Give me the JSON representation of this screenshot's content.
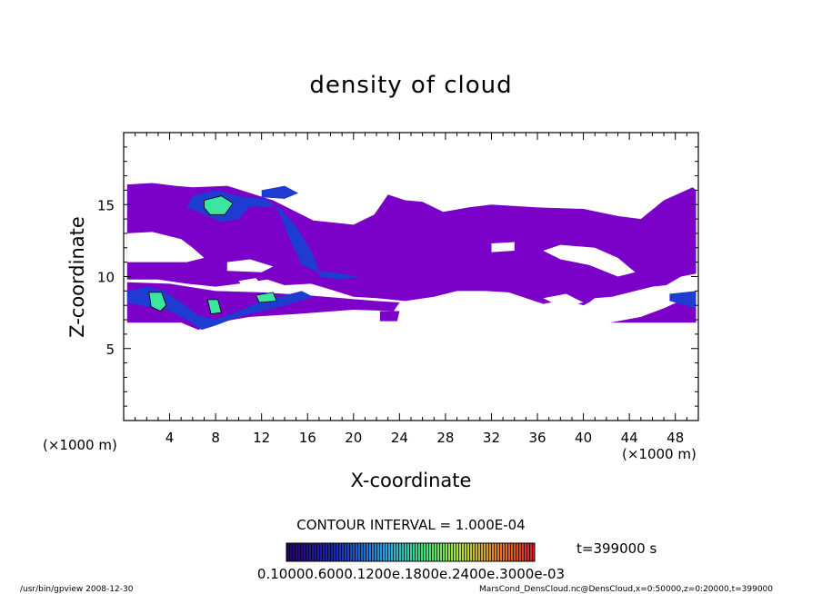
{
  "chart_data": {
    "type": "heatmap",
    "title": "density of cloud",
    "xlabel": "X-coordinate",
    "ylabel": "Z-coordinate",
    "x_unit": "(×1000 m)",
    "y_unit": "(×1000 m)",
    "xlim": [
      0,
      50
    ],
    "ylim": [
      0,
      20
    ],
    "x_ticks": [
      4,
      8,
      12,
      16,
      20,
      24,
      28,
      32,
      36,
      40,
      44,
      48
    ],
    "y_ticks": [
      5,
      10,
      15
    ],
    "contour_interval": "CONTOUR INTERVAL = 1.000E-04",
    "time_label": "t=399000 s",
    "colorbar_labels": "0.10000.6000.1200e.1800e.2400e.3000e-03",
    "colors": {
      "background": "#7b00c8",
      "mid": "#1e3cd2",
      "high": "#3ce6a0"
    },
    "regions": [
      {
        "level": 1,
        "points": [
          [
            0.3,
            16.4
          ],
          [
            2.5,
            16.5
          ],
          [
            4.5,
            16.3
          ],
          [
            6,
            16.2
          ],
          [
            9,
            16.3
          ],
          [
            13,
            15.3
          ],
          [
            16.5,
            13.9
          ],
          [
            20,
            13.6
          ],
          [
            21.8,
            14.3
          ],
          [
            23,
            15.7
          ],
          [
            24.5,
            15.3
          ],
          [
            26,
            15.2
          ],
          [
            27.8,
            14.5
          ],
          [
            30,
            14.8
          ],
          [
            32,
            15.0
          ],
          [
            36,
            14.8
          ],
          [
            40,
            14.7
          ],
          [
            43,
            14.2
          ],
          [
            45,
            14.0
          ],
          [
            47,
            15.3
          ],
          [
            49.5,
            16.2
          ],
          [
            49.8,
            16.0
          ],
          [
            49.8,
            10.2
          ],
          [
            48.5,
            10.0
          ],
          [
            47.2,
            9.4
          ],
          [
            46,
            9.3
          ],
          [
            44.5,
            9.0
          ],
          [
            42.5,
            8.6
          ],
          [
            41,
            8.5
          ],
          [
            40.5,
            8.2
          ],
          [
            40,
            8.0
          ],
          [
            38.5,
            8.4
          ],
          [
            36.5,
            8.1
          ],
          [
            35,
            8.5
          ],
          [
            33.5,
            8.9
          ],
          [
            31.5,
            9.0
          ],
          [
            29,
            9.0
          ],
          [
            27,
            8.6
          ],
          [
            24.5,
            8.3
          ],
          [
            22,
            8.5
          ],
          [
            20,
            8.6
          ],
          [
            18,
            9.1
          ],
          [
            16.3,
            9.5
          ],
          [
            14,
            9.4
          ],
          [
            12.5,
            9.8
          ],
          [
            10,
            9.5
          ],
          [
            8,
            9.3
          ],
          [
            5.5,
            9.5
          ],
          [
            3,
            9.8
          ],
          [
            0.3,
            9.8
          ],
          [
            0.3,
            16.4
          ]
        ]
      },
      {
        "level": 1,
        "points": [
          [
            0.3,
            9.6
          ],
          [
            4,
            9.5
          ],
          [
            8,
            9.0
          ],
          [
            12,
            8.9
          ],
          [
            16,
            8.7
          ],
          [
            19,
            8.5
          ],
          [
            22,
            8.3
          ],
          [
            24,
            8.2
          ],
          [
            23.5,
            7.6
          ],
          [
            20,
            7.7
          ],
          [
            15,
            7.4
          ],
          [
            11,
            7.2
          ],
          [
            8,
            6.8
          ],
          [
            6.5,
            6.3
          ],
          [
            5,
            6.8
          ],
          [
            0.3,
            6.8
          ],
          [
            0.3,
            9.6
          ]
        ]
      },
      {
        "level": 1,
        "points": [
          [
            42.3,
            6.8
          ],
          [
            45,
            7.2
          ],
          [
            47,
            7.8
          ],
          [
            49.8,
            8.8
          ],
          [
            49.8,
            6.8
          ],
          [
            42.3,
            6.8
          ]
        ]
      },
      {
        "level": 1,
        "points": [
          [
            22.3,
            7.6
          ],
          [
            24,
            7.6
          ],
          [
            23.8,
            6.9
          ],
          [
            22.3,
            6.9
          ],
          [
            22.3,
            7.6
          ]
        ]
      },
      {
        "level": 0,
        "points": [
          [
            0.3,
            13.0
          ],
          [
            2.5,
            13.1
          ],
          [
            5,
            12.6
          ],
          [
            6,
            12.0
          ],
          [
            7,
            11.3
          ],
          [
            5.5,
            11.0
          ],
          [
            0.3,
            11.0
          ],
          [
            0.3,
            13.0
          ]
        ]
      },
      {
        "level": 0,
        "points": [
          [
            9,
            11.0
          ],
          [
            11,
            11.2
          ],
          [
            13,
            10.7
          ],
          [
            12,
            10.3
          ],
          [
            9,
            10.4
          ],
          [
            9,
            11.0
          ]
        ]
      },
      {
        "level": 0,
        "points": [
          [
            10,
            9.7
          ],
          [
            11.5,
            9.9
          ],
          [
            12,
            9.4
          ],
          [
            10.5,
            9.2
          ],
          [
            10,
            9.7
          ]
        ]
      },
      {
        "level": 0,
        "points": [
          [
            38,
            12.2
          ],
          [
            41,
            12.0
          ],
          [
            43,
            11.3
          ],
          [
            44.5,
            10.3
          ],
          [
            43,
            10.0
          ],
          [
            40.5,
            10.8
          ],
          [
            38,
            11.2
          ],
          [
            36.5,
            11.8
          ],
          [
            38,
            12.2
          ]
        ]
      },
      {
        "level": 0,
        "points": [
          [
            32,
            12.3
          ],
          [
            34,
            12.4
          ],
          [
            34,
            11.8
          ],
          [
            32,
            11.7
          ],
          [
            32,
            12.3
          ]
        ]
      },
      {
        "level": 0,
        "points": [
          [
            36.5,
            8.5
          ],
          [
            38.5,
            8.8
          ],
          [
            40,
            8.2
          ],
          [
            38,
            7.9
          ],
          [
            36.5,
            8.5
          ]
        ]
      },
      {
        "level": 2,
        "points": [
          [
            6,
            15.6
          ],
          [
            8,
            16.0
          ],
          [
            10.5,
            15.5
          ],
          [
            12.5,
            15.4
          ],
          [
            13.5,
            14.5
          ],
          [
            14.5,
            12.5
          ],
          [
            15.5,
            10.8
          ],
          [
            17,
            10.3
          ],
          [
            16.5,
            11.5
          ],
          [
            15,
            13.5
          ],
          [
            13.5,
            14.8
          ],
          [
            11,
            14.9
          ],
          [
            10,
            14.0
          ],
          [
            8.5,
            13.8
          ],
          [
            6.5,
            14.5
          ],
          [
            5.5,
            14.8
          ],
          [
            6,
            15.6
          ]
        ]
      },
      {
        "level": 2,
        "points": [
          [
            0.3,
            9.0
          ],
          [
            2,
            9.3
          ],
          [
            3.5,
            9.0
          ],
          [
            5,
            8.2
          ],
          [
            6.5,
            7.3
          ],
          [
            8,
            7.0
          ],
          [
            10,
            7.6
          ],
          [
            12,
            8.3
          ],
          [
            14,
            8.7
          ],
          [
            15.5,
            9.0
          ],
          [
            16.5,
            8.6
          ],
          [
            14,
            8.0
          ],
          [
            12,
            7.6
          ],
          [
            10,
            7.2
          ],
          [
            8,
            6.6
          ],
          [
            6.8,
            6.3
          ],
          [
            5.5,
            7.0
          ],
          [
            3.5,
            7.8
          ],
          [
            1.5,
            8.0
          ],
          [
            0.3,
            8.2
          ],
          [
            0.3,
            9.0
          ]
        ]
      },
      {
        "level": 2,
        "points": [
          [
            12,
            16.0
          ],
          [
            14,
            16.3
          ],
          [
            15.2,
            15.8
          ],
          [
            14,
            15.4
          ],
          [
            12,
            15.5
          ],
          [
            12,
            16.0
          ]
        ]
      },
      {
        "level": 2,
        "points": [
          [
            47.5,
            8.8
          ],
          [
            49.8,
            9.0
          ],
          [
            49.8,
            7.8
          ],
          [
            47.5,
            8.3
          ],
          [
            47.5,
            8.8
          ]
        ]
      },
      {
        "level": 2,
        "points": [
          [
            17,
            10.4
          ],
          [
            19,
            10.2
          ],
          [
            20.5,
            10.0
          ],
          [
            19,
            9.8
          ],
          [
            17,
            10.0
          ],
          [
            17,
            10.4
          ]
        ]
      },
      {
        "level": 3,
        "points": [
          [
            7,
            15.3
          ],
          [
            8.5,
            15.6
          ],
          [
            9.5,
            15.1
          ],
          [
            8.8,
            14.3
          ],
          [
            7.5,
            14.3
          ],
          [
            7,
            14.8
          ],
          [
            7,
            15.3
          ]
        ]
      },
      {
        "level": 3,
        "points": [
          [
            2.2,
            8.9
          ],
          [
            3.3,
            8.9
          ],
          [
            3.7,
            8.0
          ],
          [
            3.2,
            7.6
          ],
          [
            2.4,
            7.9
          ],
          [
            2.2,
            8.9
          ]
        ]
      },
      {
        "level": 3,
        "points": [
          [
            7.3,
            8.4
          ],
          [
            8.2,
            8.4
          ],
          [
            8.5,
            7.5
          ],
          [
            7.6,
            7.4
          ],
          [
            7.3,
            8.4
          ]
        ]
      },
      {
        "level": 3,
        "points": [
          [
            11.5,
            8.7
          ],
          [
            13,
            8.9
          ],
          [
            13.3,
            8.3
          ],
          [
            11.8,
            8.2
          ],
          [
            11.5,
            8.7
          ]
        ]
      }
    ]
  },
  "footer": {
    "left": "/usr/bin/gpview   2008-12-30",
    "right": "MarsCond_DensCloud.nc@DensCloud,x=0:50000,z=0:20000,t=399000"
  }
}
